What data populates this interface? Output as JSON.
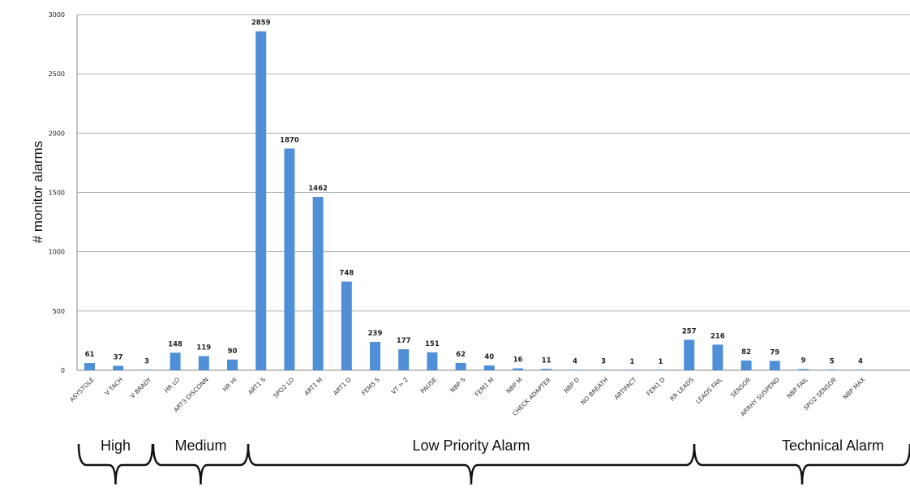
{
  "chart_data": {
    "type": "bar",
    "title": "",
    "xlabel": "",
    "ylabel": "# monitor alarms",
    "ylim": [
      0,
      3000
    ],
    "yticks": [
      0,
      500,
      1000,
      1500,
      2000,
      2500,
      3000
    ],
    "grid": true,
    "categories": [
      "ASYSTOLE",
      "V TACH",
      "V BRADY",
      "HR LO",
      "ART3 DISCONN",
      "HR HI",
      "ART1 S",
      "SPO2 LO",
      "ART1 M",
      "ART1 D",
      "FEM5 S",
      "VT > 2",
      "PAUSE",
      "NBP S",
      "FEM1 M",
      "NBP M",
      "CHECK ADAPTER",
      "NBP D",
      "NO BREATH",
      "ARTIFACT",
      "FEM1 D",
      "RR LEADS",
      "LEADS FAIL",
      "SENSOR",
      "ARRHY SUSPEND",
      "NBP FAIL",
      "SPO2 SENSOR",
      "NBP MAX"
    ],
    "values": [
      61,
      37,
      3,
      148,
      119,
      90,
      2859,
      1870,
      1462,
      748,
      239,
      177,
      151,
      62,
      40,
      16,
      11,
      4,
      3,
      1,
      1,
      257,
      216,
      82,
      79,
      9,
      5,
      4
    ],
    "color": "#4f8fd8",
    "groups": [
      {
        "label": "High",
        "start": 0,
        "end": 2
      },
      {
        "label": "Medium",
        "start": 3,
        "end": 5
      },
      {
        "label": "Low Priority Alarm",
        "start": 6,
        "end": 20
      },
      {
        "label": "Technical Alarm",
        "start": 21,
        "end": 27
      }
    ]
  }
}
